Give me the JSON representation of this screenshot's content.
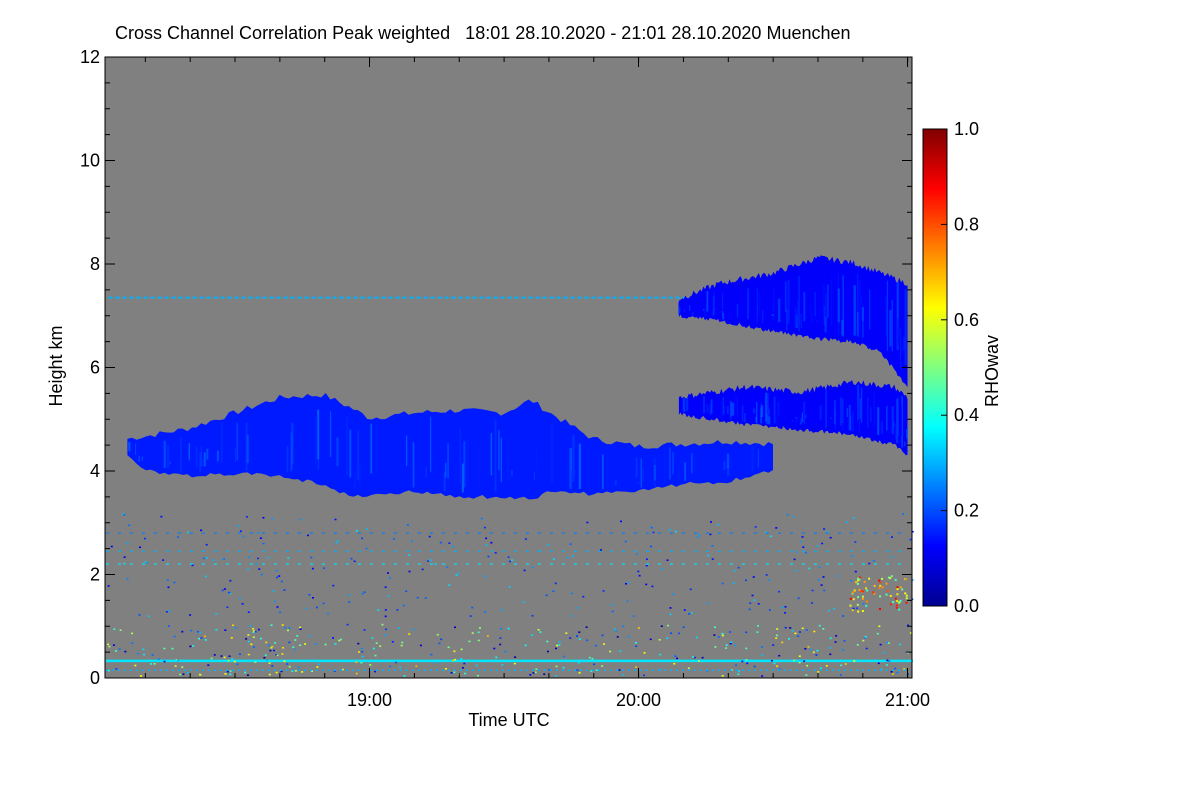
{
  "chart_data": {
    "type": "heatmap",
    "title": "Cross Channel Correlation Peak weighted   18:01 28.10.2020 - 21:01 28.10.2020 Muenchen",
    "xlabel": "Time UTC",
    "ylabel": "Height km",
    "xlim_hours": [
      18.0167,
      21.0167
    ],
    "ylim": [
      0,
      12
    ],
    "x_ticks": [
      {
        "value": 19.0,
        "label": "19:00"
      },
      {
        "value": 20.0,
        "label": "20:00"
      },
      {
        "value": 21.0,
        "label": "21:00"
      }
    ],
    "x_minor_step_hours": 0.1667,
    "y_ticks": [
      {
        "value": 0,
        "label": "0"
      },
      {
        "value": 2,
        "label": "2"
      },
      {
        "value": 4,
        "label": "4"
      },
      {
        "value": 6,
        "label": "6"
      },
      {
        "value": 8,
        "label": "8"
      },
      {
        "value": 10,
        "label": "10"
      },
      {
        "value": 12,
        "label": "12"
      }
    ],
    "y_minor_step": 0.5,
    "background_color": "#808080",
    "colorbar": {
      "label": "RHOwav",
      "range": [
        0.0,
        1.0
      ],
      "ticks": [
        {
          "value": 0.0,
          "label": "0.0"
        },
        {
          "value": 0.2,
          "label": "0.2"
        },
        {
          "value": 0.4,
          "label": "0.4"
        },
        {
          "value": 0.6,
          "label": "0.6"
        },
        {
          "value": 0.8,
          "label": "0.8"
        },
        {
          "value": 1.0,
          "label": "1.0"
        }
      ],
      "colormap": [
        "#00008f",
        "#0000ff",
        "#0080ff",
        "#00ffff",
        "#80ff80",
        "#ffff00",
        "#ff8000",
        "#ff0000",
        "#800000"
      ]
    },
    "features": [
      {
        "name": "main-cloud-layer",
        "value": 0.15,
        "time_hours": [
          18.1,
          18.17,
          18.33,
          18.5,
          18.67,
          18.83,
          18.93,
          19.0,
          19.17,
          19.33,
          19.5,
          19.6,
          19.67,
          19.83,
          20.0,
          20.17,
          20.33,
          20.5
        ],
        "top_km": [
          4.6,
          4.65,
          4.8,
          5.1,
          5.4,
          5.45,
          5.2,
          5.0,
          5.1,
          5.15,
          5.1,
          5.35,
          5.1,
          4.6,
          4.45,
          4.5,
          4.55,
          4.5
        ],
        "base_km": [
          4.3,
          4.0,
          3.9,
          3.95,
          3.9,
          3.75,
          3.5,
          3.55,
          3.6,
          3.5,
          3.5,
          3.45,
          3.6,
          3.55,
          3.6,
          3.75,
          3.8,
          4.0
        ]
      },
      {
        "name": "upper-cloud-layer",
        "value": 0.12,
        "time_hours": [
          20.15,
          20.3,
          20.5,
          20.67,
          20.8,
          20.9,
          21.0
        ],
        "top_km": [
          7.3,
          7.6,
          7.8,
          8.1,
          8.0,
          7.8,
          7.6
        ],
        "base_km": [
          7.0,
          6.9,
          6.7,
          6.55,
          6.5,
          6.3,
          5.6
        ]
      },
      {
        "name": "mid-cloud-patches",
        "value": 0.12,
        "time_hours": [
          20.15,
          20.4,
          20.6,
          20.8,
          20.95,
          21.0
        ],
        "top_km": [
          5.4,
          5.6,
          5.5,
          5.7,
          5.6,
          5.4
        ],
        "base_km": [
          5.1,
          4.9,
          4.8,
          4.7,
          4.5,
          4.3
        ]
      },
      {
        "name": "thin-layer-7.3km",
        "value": 0.3,
        "time_range": [
          18.03,
          20.17
        ],
        "height_km": 7.35
      },
      {
        "name": "surface-line",
        "value": 0.35,
        "time_range": [
          18.02,
          21.02
        ],
        "height_km": 0.33
      },
      {
        "name": "rain-signal",
        "value": 0.65,
        "time_range": [
          20.78,
          21.0
        ],
        "height_range_km": [
          1.3,
          2.0
        ]
      }
    ]
  }
}
